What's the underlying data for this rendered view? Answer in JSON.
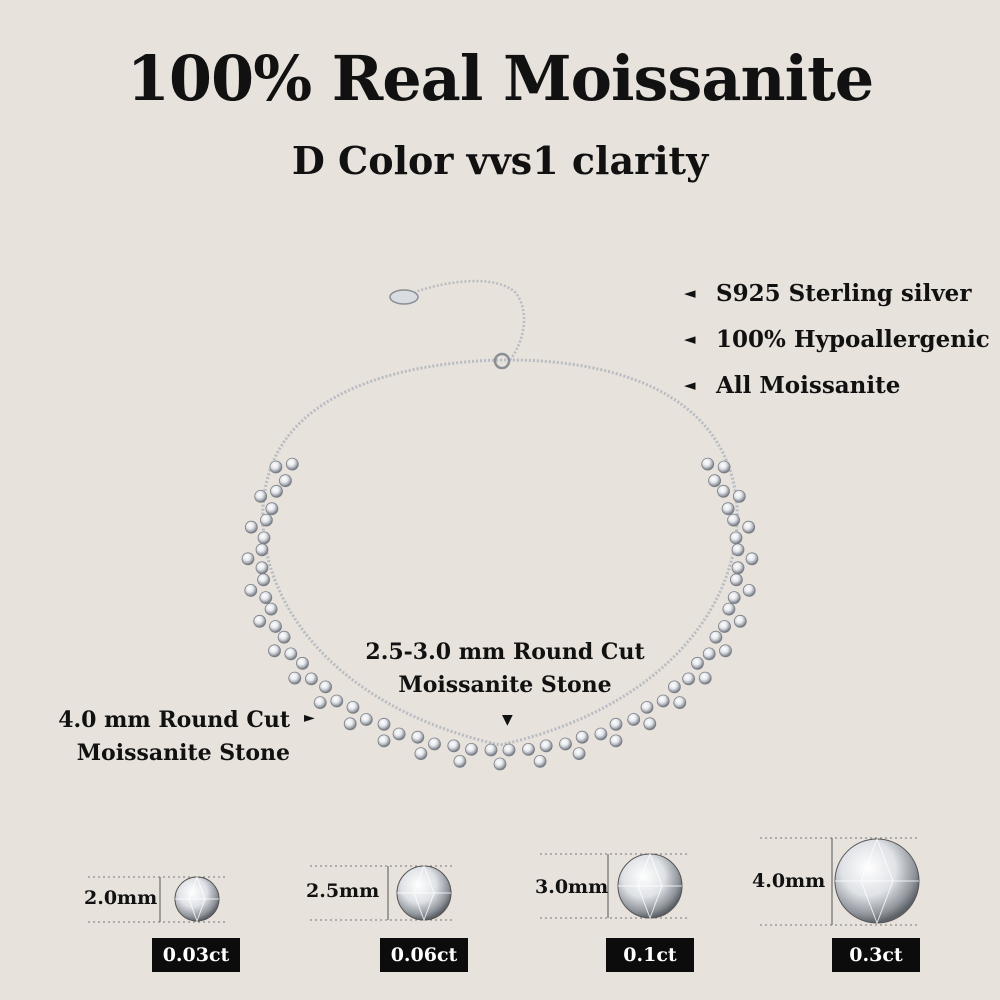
{
  "header": {
    "title": "100% Real Moissanite",
    "subtitle": "D Color vvs1 clarity"
  },
  "features": [
    {
      "label": "S925 Sterling silver",
      "icon": "triangle-left-icon"
    },
    {
      "label": "100% Hypoallergenic",
      "icon": "triangle-left-icon"
    },
    {
      "label": "All Moissanite",
      "icon": "triangle-left-icon"
    }
  ],
  "callouts": {
    "small_stone_line1": "2.5-3.0 mm Round Cut",
    "small_stone_line2": "Moissanite Stone",
    "large_stone_line1": "4.0 mm Round Cut",
    "large_stone_line2": "Moissanite Stone"
  },
  "stones": [
    {
      "size": "2.0mm",
      "carat": "0.03ct"
    },
    {
      "size": "2.5mm",
      "carat": "0.06ct"
    },
    {
      "size": "3.0mm",
      "carat": "0.1ct"
    },
    {
      "size": "4.0mm",
      "carat": "0.3ct"
    }
  ],
  "colors": {
    "background": "#e7e2dc",
    "badge": "#0c0c0c",
    "silver": "#c9ccd1"
  }
}
